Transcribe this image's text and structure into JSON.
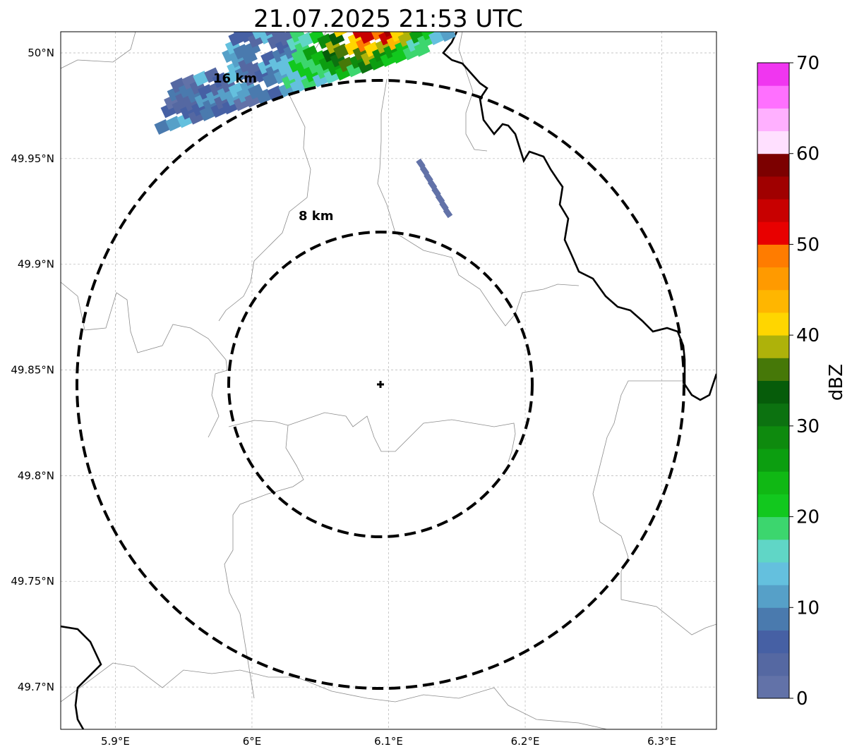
{
  "title": "21.07.2025 21:53 UTC",
  "map": {
    "lon_range": [
      5.86,
      6.34
    ],
    "lat_range": [
      49.68,
      50.01
    ],
    "radar_site": {
      "lon": 6.095,
      "lat": 49.843
    },
    "x_ticks": [
      5.9,
      6.0,
      6.1,
      6.2,
      6.3
    ],
    "x_tick_labels": [
      "5.9°E",
      "6°E",
      "6.1°E",
      "6.2°E",
      "6.3°E"
    ],
    "y_ticks": [
      50.0,
      49.95,
      49.9,
      49.85,
      49.8,
      49.75,
      49.7
    ],
    "y_tick_labels": [
      "50°N",
      "49.95°N",
      "49.9°N",
      "49.85°N",
      "49.8°N",
      "49.75°N",
      "49.7°N"
    ],
    "grid": true,
    "range_rings": [
      {
        "label": "8 km",
        "radius_km": 8
      },
      {
        "label": "16 km",
        "radius_km": 16
      }
    ]
  },
  "colorbar": {
    "label": "dBZ",
    "min": 0,
    "max": 70,
    "tick_values": [
      0,
      10,
      20,
      30,
      40,
      50,
      60,
      70
    ],
    "tick_labels": [
      "0",
      "10",
      "20",
      "30",
      "40",
      "50",
      "60",
      "70"
    ],
    "colors": [
      "#6272a8",
      "#5568a2",
      "#4660a4",
      "#4a7aae",
      "#56a0c8",
      "#64c0de",
      "#60d6c6",
      "#3cd66e",
      "#12c81e",
      "#10b814",
      "#0c9e10",
      "#0e8a0e",
      "#0c7210",
      "#065c0a",
      "#467808",
      "#aeb20a",
      "#ffd600",
      "#ffb600",
      "#ff9a00",
      "#ff7c00",
      "#e80000",
      "#c80000",
      "#a00000",
      "#7c0000",
      "#ffe0ff",
      "#ffb0ff",
      "#ff70ff",
      "#f036f0"
    ]
  },
  "echoes": {
    "dbz_range": [
      0,
      58
    ]
  }
}
